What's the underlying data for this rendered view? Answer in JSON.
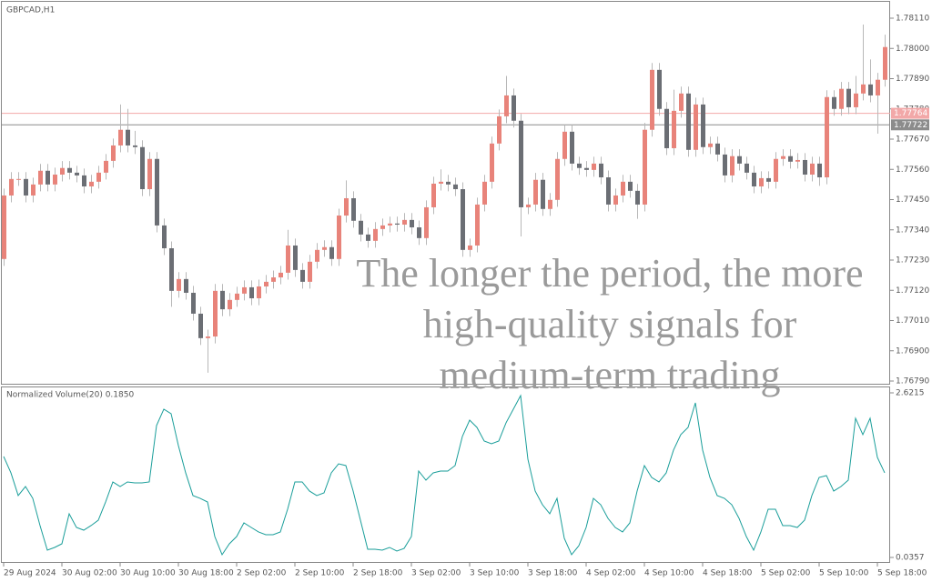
{
  "chart_data": [
    {
      "type": "candlestick",
      "title": "GBPCAD,H1",
      "categories": [
        "29 Aug 2024",
        null,
        null,
        null,
        null,
        null,
        null,
        null,
        "30 Aug 02:00",
        null,
        null,
        null,
        null,
        null,
        null,
        null,
        "30 Aug 10:00",
        null,
        null,
        null,
        null,
        null,
        null,
        null,
        "30 Aug 18:00",
        null,
        null,
        null,
        null,
        null,
        null,
        null,
        "2 Sep 02:00",
        null,
        null,
        null,
        null,
        null,
        null,
        null,
        "2 Sep 10:00",
        null,
        null,
        null,
        null,
        null,
        null,
        null,
        "2 Sep 18:00",
        null,
        null,
        null,
        null,
        null,
        null,
        null,
        "3 Sep 02:00",
        null,
        null,
        null,
        null,
        null,
        null,
        null,
        "3 Sep 10:00",
        null,
        null,
        null,
        null,
        null,
        null,
        null,
        "3 Sep 18:00",
        null,
        null,
        null,
        null,
        null,
        null,
        null,
        "4 Sep 02:00",
        null,
        null,
        null,
        null,
        null,
        null,
        null,
        "4 Sep 10:00",
        null,
        null,
        null,
        null,
        null,
        null,
        null,
        "4 Sep 18:00",
        null,
        null,
        null,
        null,
        null,
        null,
        null,
        "5 Sep 02:00",
        null,
        null,
        null,
        null,
        null,
        null,
        null,
        "5 Sep 10:00",
        null,
        null,
        null,
        null,
        null,
        null,
        null,
        "5 Sep 18:00",
        null
      ],
      "ohlc": [
        [
          1.77234,
          1.7749,
          1.77209,
          1.77465
        ],
        [
          1.77465,
          1.7755,
          1.7744,
          1.77525
        ],
        [
          1.77525,
          1.7755,
          1.775,
          1.77525
        ],
        [
          1.77525,
          1.7755,
          1.7744,
          1.77465
        ],
        [
          1.77465,
          1.7753,
          1.7744,
          1.77505
        ],
        [
          1.77505,
          1.7758,
          1.7748,
          1.77555
        ],
        [
          1.77555,
          1.7758,
          1.7748,
          1.77505
        ],
        [
          1.77505,
          1.77566,
          1.7748,
          1.77541
        ],
        [
          1.77541,
          1.7759,
          1.77516,
          1.77565
        ],
        [
          1.77565,
          1.7759,
          1.77523,
          1.77548
        ],
        [
          1.77548,
          1.77573,
          1.77513,
          1.77538
        ],
        [
          1.77538,
          1.77563,
          1.77473,
          1.77498
        ],
        [
          1.77498,
          1.7754,
          1.77473,
          1.77515
        ],
        [
          1.77515,
          1.77573,
          1.7749,
          1.77548
        ],
        [
          1.77548,
          1.77616,
          1.77523,
          1.77591
        ],
        [
          1.77591,
          1.77672,
          1.77566,
          1.77647
        ],
        [
          1.77647,
          1.77796,
          1.77622,
          1.77704
        ],
        [
          1.77704,
          1.7778,
          1.77622,
          1.77647
        ],
        [
          1.77647,
          1.777,
          1.77616,
          1.77641
        ],
        [
          1.77641,
          1.77666,
          1.77463,
          1.77488
        ],
        [
          1.77488,
          1.77623,
          1.77463,
          1.77598
        ],
        [
          1.77598,
          1.77623,
          1.77331,
          1.77356
        ],
        [
          1.77356,
          1.77381,
          1.77248,
          1.77273
        ],
        [
          1.77273,
          1.77298,
          1.7706,
          1.77118
        ],
        [
          1.77118,
          1.77186,
          1.77093,
          1.77161
        ],
        [
          1.77161,
          1.77186,
          1.77086,
          1.77111
        ],
        [
          1.77111,
          1.77136,
          1.7701,
          1.77035
        ],
        [
          1.77035,
          1.7706,
          1.76921,
          1.76946
        ],
        [
          1.76946,
          1.76977,
          1.7682,
          1.76952
        ],
        [
          1.76952,
          1.77143,
          1.76927,
          1.77118
        ],
        [
          1.77118,
          1.77143,
          1.77026,
          1.77051
        ],
        [
          1.77051,
          1.7711,
          1.77026,
          1.77085
        ],
        [
          1.77085,
          1.77133,
          1.7706,
          1.77108
        ],
        [
          1.77108,
          1.77156,
          1.77083,
          1.77131
        ],
        [
          1.77131,
          1.77156,
          1.77066,
          1.77091
        ],
        [
          1.77091,
          1.77159,
          1.77066,
          1.77134
        ],
        [
          1.77134,
          1.77176,
          1.77109,
          1.77151
        ],
        [
          1.77151,
          1.77192,
          1.77126,
          1.77167
        ],
        [
          1.77167,
          1.77209,
          1.77142,
          1.77184
        ],
        [
          1.77184,
          1.7734,
          1.77159,
          1.77283
        ],
        [
          1.77283,
          1.77308,
          1.77169,
          1.77194
        ],
        [
          1.77194,
          1.77219,
          1.77126,
          1.77151
        ],
        [
          1.77151,
          1.77249,
          1.77126,
          1.77224
        ],
        [
          1.77224,
          1.77292,
          1.77199,
          1.77267
        ],
        [
          1.77267,
          1.77302,
          1.77242,
          1.77277
        ],
        [
          1.77277,
          1.77302,
          1.77209,
          1.77234
        ],
        [
          1.77234,
          1.77417,
          1.77209,
          1.77392
        ],
        [
          1.77392,
          1.7752,
          1.77367,
          1.77455
        ],
        [
          1.77455,
          1.7748,
          1.77348,
          1.77373
        ],
        [
          1.77373,
          1.77398,
          1.77298,
          1.77323
        ],
        [
          1.77323,
          1.77348,
          1.77275,
          1.773
        ],
        [
          1.773,
          1.77368,
          1.77275,
          1.77343
        ],
        [
          1.77343,
          1.77381,
          1.77318,
          1.77356
        ],
        [
          1.77356,
          1.77388,
          1.77331,
          1.77363
        ],
        [
          1.77363,
          1.77388,
          1.77334,
          1.77359
        ],
        [
          1.77359,
          1.77401,
          1.77334,
          1.77376
        ],
        [
          1.77376,
          1.77401,
          1.77324,
          1.77349
        ],
        [
          1.77349,
          1.77374,
          1.77285,
          1.7731
        ],
        [
          1.7731,
          1.77447,
          1.77285,
          1.77422
        ],
        [
          1.77422,
          1.77533,
          1.77397,
          1.77508
        ],
        [
          1.77508,
          1.7756,
          1.77483,
          1.77515
        ],
        [
          1.77515,
          1.7754,
          1.7748,
          1.77505
        ],
        [
          1.77505,
          1.7753,
          1.77463,
          1.77488
        ],
        [
          1.77488,
          1.77513,
          1.77242,
          1.77267
        ],
        [
          1.77267,
          1.77308,
          1.77242,
          1.77283
        ],
        [
          1.77283,
          1.77457,
          1.77258,
          1.77432
        ],
        [
          1.77432,
          1.7754,
          1.77407,
          1.77515
        ],
        [
          1.77515,
          1.77679,
          1.7749,
          1.77654
        ],
        [
          1.77654,
          1.77778,
          1.77629,
          1.77753
        ],
        [
          1.77753,
          1.779,
          1.77728,
          1.77829
        ],
        [
          1.77829,
          1.77854,
          1.77712,
          1.77737
        ],
        [
          1.77737,
          1.77762,
          1.77316,
          1.77422
        ],
        [
          1.77422,
          1.77457,
          1.77397,
          1.77432
        ],
        [
          1.77432,
          1.77547,
          1.77407,
          1.77522
        ],
        [
          1.77522,
          1.77547,
          1.77391,
          1.77416
        ],
        [
          1.77416,
          1.77474,
          1.77391,
          1.77449
        ],
        [
          1.77449,
          1.77623,
          1.77424,
          1.77598
        ],
        [
          1.77598,
          1.77722,
          1.77573,
          1.77697
        ],
        [
          1.77697,
          1.77722,
          1.77556,
          1.77581
        ],
        [
          1.77581,
          1.77606,
          1.7754,
          1.77565
        ],
        [
          1.77565,
          1.7759,
          1.77533,
          1.77558
        ],
        [
          1.77558,
          1.77606,
          1.77533,
          1.77581
        ],
        [
          1.77581,
          1.77606,
          1.77506,
          1.77531
        ],
        [
          1.77531,
          1.77556,
          1.77407,
          1.77432
        ],
        [
          1.77432,
          1.7749,
          1.77407,
          1.77465
        ],
        [
          1.77465,
          1.7754,
          1.7744,
          1.77515
        ],
        [
          1.77515,
          1.7754,
          1.77457,
          1.77482
        ],
        [
          1.77482,
          1.77507,
          1.7738,
          1.77432
        ],
        [
          1.77432,
          1.77729,
          1.77407,
          1.77704
        ],
        [
          1.77704,
          1.77947,
          1.77679,
          1.77922
        ],
        [
          1.77922,
          1.77947,
          1.77755,
          1.7778
        ],
        [
          1.7778,
          1.77805,
          1.77612,
          1.77637
        ],
        [
          1.77637,
          1.7785,
          1.77612,
          1.77773
        ],
        [
          1.77773,
          1.77861,
          1.77748,
          1.77836
        ],
        [
          1.77836,
          1.77861,
          1.77606,
          1.77631
        ],
        [
          1.77631,
          1.77821,
          1.77606,
          1.77796
        ],
        [
          1.77796,
          1.77821,
          1.77616,
          1.77641
        ],
        [
          1.77641,
          1.77679,
          1.77616,
          1.77654
        ],
        [
          1.77654,
          1.77679,
          1.77589,
          1.77614
        ],
        [
          1.77614,
          1.77639,
          1.77513,
          1.77538
        ],
        [
          1.77538,
          1.77633,
          1.77513,
          1.77608
        ],
        [
          1.77608,
          1.77633,
          1.77556,
          1.77581
        ],
        [
          1.77581,
          1.77606,
          1.77523,
          1.77548
        ],
        [
          1.77548,
          1.77573,
          1.77473,
          1.77498
        ],
        [
          1.77498,
          1.77553,
          1.77473,
          1.77528
        ],
        [
          1.77528,
          1.77553,
          1.7749,
          1.77515
        ],
        [
          1.77515,
          1.77623,
          1.7749,
          1.77598
        ],
        [
          1.77598,
          1.77633,
          1.77573,
          1.77608
        ],
        [
          1.77608,
          1.77633,
          1.77563,
          1.77588
        ],
        [
          1.77588,
          1.77619,
          1.77563,
          1.77594
        ],
        [
          1.77594,
          1.77619,
          1.77516,
          1.77541
        ],
        [
          1.77541,
          1.77606,
          1.77516,
          1.77581
        ],
        [
          1.77581,
          1.77606,
          1.775,
          1.77531
        ],
        [
          1.77531,
          1.77848,
          1.77506,
          1.77823
        ],
        [
          1.77823,
          1.77848,
          1.77755,
          1.7778
        ],
        [
          1.7778,
          1.77878,
          1.77755,
          1.77853
        ],
        [
          1.77853,
          1.77878,
          1.77761,
          1.77786
        ],
        [
          1.77786,
          1.779,
          1.77761,
          1.77836
        ],
        [
          1.77836,
          1.78087,
          1.77811,
          1.77869
        ],
        [
          1.77869,
          1.7796,
          1.77804,
          1.77829
        ],
        [
          1.77829,
          1.77911,
          1.7769,
          1.77886
        ],
        [
          1.77886,
          1.7805,
          1.77861,
          1.78005
        ]
      ],
      "up_color": "#e8837a",
      "down_color": "#6b6e74",
      "ylim": [
        1.7679,
        1.7811
      ],
      "yticks": [
        {
          "value": 1.7811,
          "label": "1.78110"
        },
        {
          "value": 1.78,
          "label": "1.78000"
        },
        {
          "value": 1.7789,
          "label": "1.77890"
        },
        {
          "value": 1.7778,
          "label": "1.77780"
        },
        {
          "value": 1.7767,
          "label": "1.77670"
        },
        {
          "value": 1.7756,
          "label": "1.77560"
        },
        {
          "value": 1.7745,
          "label": "1.77450"
        },
        {
          "value": 1.7734,
          "label": "1.77340"
        },
        {
          "value": 1.7723,
          "label": "1.77230"
        },
        {
          "value": 1.7712,
          "label": "1.77120"
        },
        {
          "value": 1.7701,
          "label": "1.77010"
        },
        {
          "value": 1.769,
          "label": "1.76900"
        },
        {
          "value": 1.7679,
          "label": "1.76790"
        }
      ],
      "price_lines": [
        {
          "value": 1.77764,
          "color": "#f2a8a8"
        },
        {
          "value": 1.77722,
          "color": "#8c8c8c"
        }
      ],
      "annotation": [
        "The longer the period, the more",
        "high-quality signals for",
        "medium-term trading"
      ]
    },
    {
      "type": "line",
      "title": "Normalized Volume(20) 0.1850",
      "color": "#1a9e9a",
      "values": [
        1.622,
        1.365,
        1.008,
        1.15,
        0.964,
        0.536,
        0.15,
        0.193,
        0.25,
        0.722,
        0.507,
        0.464,
        0.536,
        0.621,
        0.907,
        1.222,
        1.15,
        1.222,
        1.207,
        1.207,
        1.222,
        2.108,
        2.365,
        2.294,
        1.793,
        1.365,
        1.008,
        0.964,
        0.907,
        0.364,
        0.079,
        0.25,
        0.364,
        0.579,
        0.507,
        0.436,
        0.393,
        0.393,
        0.436,
        0.793,
        1.222,
        1.222,
        1.079,
        1.008,
        1.05,
        1.365,
        1.507,
        1.479,
        1.079,
        0.621,
        0.164,
        0.164,
        0.15,
        0.193,
        0.136,
        0.178,
        0.364,
        1.393,
        1.25,
        1.365,
        1.393,
        1.393,
        1.479,
        1.936,
        2.193,
        2.079,
        1.865,
        1.822,
        1.865,
        2.151,
        2.365,
        2.579,
        1.579,
        1.079,
        0.864,
        0.722,
        0.964,
        0.336,
        0.079,
        0.221,
        0.507,
        0.964,
        0.864,
        0.65,
        0.507,
        0.436,
        0.579,
        1.079,
        1.479,
        1.293,
        1.222,
        1.365,
        1.722,
        1.965,
        2.079,
        2.465,
        1.722,
        1.293,
        1.008,
        0.964,
        0.864,
        0.65,
        0.364,
        0.15,
        0.436,
        0.793,
        0.793,
        0.536,
        0.536,
        0.507,
        0.621,
        1.008,
        1.293,
        1.322,
        1.079,
        1.15,
        1.25,
        2.222,
        1.965,
        2.222,
        1.607,
        1.365
      ],
      "ylim": [
        0.0357,
        2.6215
      ],
      "yticks": [
        2.6215,
        0.0357
      ]
    }
  ]
}
